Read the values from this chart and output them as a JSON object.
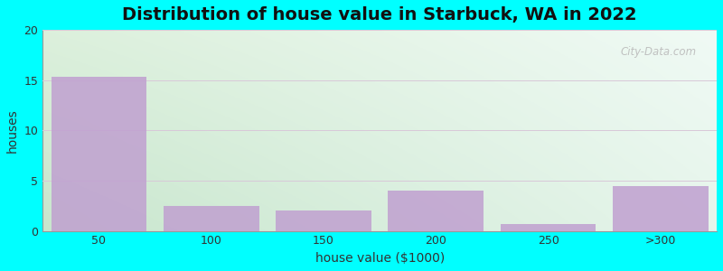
{
  "title": "Distribution of house value in Starbuck, WA in 2022",
  "xlabel": "house value ($1000)",
  "ylabel": "houses",
  "categories": [
    "50",
    "100",
    "150",
    "200",
    "250",
    ">300"
  ],
  "values": [
    15.3,
    2.5,
    2.0,
    4.0,
    0.7,
    4.5
  ],
  "bar_color": "#C0A0D0",
  "ylim": [
    0,
    20
  ],
  "yticks": [
    0,
    5,
    10,
    15,
    20
  ],
  "background_outer": "#00FFFF",
  "grid_color": "#D8C8D8",
  "title_fontsize": 14,
  "axis_label_fontsize": 10,
  "tick_fontsize": 9,
  "bar_width": 0.85
}
